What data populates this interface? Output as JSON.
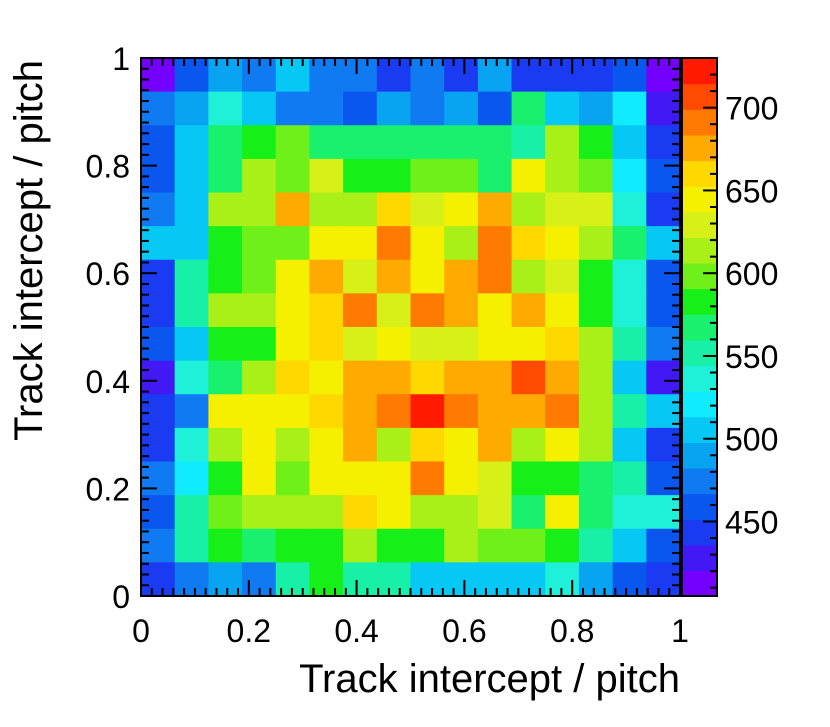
{
  "chart_data": {
    "type": "heatmap",
    "xlabel": "Track intercept / pitch",
    "ylabel": "Track intercept / pitch",
    "xlim": [
      0,
      1
    ],
    "ylim": [
      0,
      1
    ],
    "x_ticks": [
      "0",
      "0.2",
      "0.4",
      "0.6",
      "0.8",
      "1"
    ],
    "y_ticks": [
      "0",
      "0.2",
      "0.4",
      "0.6",
      "0.8",
      "1"
    ],
    "colorbar": {
      "min": 405,
      "max": 730,
      "ticks": [
        "450",
        "500",
        "550",
        "600",
        "650",
        "700"
      ],
      "palette": [
        "#7400ff",
        "#4218f5",
        "#1a3bf2",
        "#0a57f0",
        "#0f7af2",
        "#08a4f2",
        "#06c8f5",
        "#10ebff",
        "#1ff0d8",
        "#18f0a8",
        "#18f06e",
        "#16f018",
        "#6ef018",
        "#a8f018",
        "#d6f018",
        "#f5f000",
        "#ffd800",
        "#ffaa00",
        "#ff7a00",
        "#ff4a00",
        "#ff1a00"
      ]
    },
    "nx": 16,
    "ny": 16,
    "values": [
      [
        415,
        465,
        485,
        470,
        505,
        468,
        470,
        445,
        480,
        445,
        485,
        448,
        445,
        440,
        465,
        420
      ],
      [
        470,
        485,
        530,
        505,
        480,
        480,
        465,
        485,
        480,
        490,
        460,
        560,
        510,
        490,
        525,
        430
      ],
      [
        460,
        510,
        560,
        580,
        595,
        570,
        565,
        560,
        560,
        570,
        560,
        555,
        620,
        580,
        510,
        450
      ],
      [
        460,
        505,
        565,
        615,
        600,
        625,
        590,
        590,
        605,
        600,
        575,
        640,
        620,
        595,
        520,
        455
      ],
      [
        470,
        500,
        610,
        620,
        670,
        615,
        610,
        655,
        625,
        640,
        670,
        610,
        635,
        630,
        540,
        450
      ],
      [
        505,
        500,
        590,
        605,
        605,
        640,
        640,
        690,
        650,
        620,
        690,
        660,
        640,
        610,
        560,
        500
      ],
      [
        450,
        550,
        590,
        600,
        650,
        675,
        625,
        670,
        650,
        680,
        690,
        620,
        630,
        590,
        530,
        460
      ],
      [
        440,
        555,
        615,
        615,
        645,
        655,
        685,
        630,
        685,
        670,
        640,
        670,
        650,
        580,
        535,
        460
      ],
      [
        460,
        500,
        590,
        585,
        645,
        660,
        635,
        640,
        635,
        630,
        645,
        650,
        665,
        620,
        545,
        475
      ],
      [
        430,
        530,
        570,
        620,
        665,
        640,
        675,
        670,
        660,
        680,
        680,
        710,
        680,
        610,
        500,
        430
      ],
      [
        445,
        470,
        650,
        650,
        650,
        660,
        675,
        690,
        730,
        690,
        680,
        680,
        690,
        620,
        550,
        500
      ],
      [
        445,
        535,
        615,
        650,
        620,
        645,
        680,
        620,
        655,
        640,
        680,
        610,
        640,
        610,
        500,
        450
      ],
      [
        480,
        525,
        590,
        650,
        595,
        650,
        650,
        650,
        690,
        640,
        625,
        590,
        585,
        570,
        545,
        460
      ],
      [
        465,
        555,
        595,
        615,
        610,
        610,
        660,
        640,
        610,
        620,
        630,
        575,
        640,
        570,
        530,
        540
      ],
      [
        470,
        550,
        580,
        575,
        590,
        590,
        615,
        580,
        580,
        620,
        600,
        600,
        580,
        550,
        510,
        455
      ],
      [
        440,
        470,
        490,
        480,
        545,
        580,
        545,
        545,
        505,
        505,
        500,
        500,
        535,
        490,
        455,
        440
      ]
    ]
  }
}
